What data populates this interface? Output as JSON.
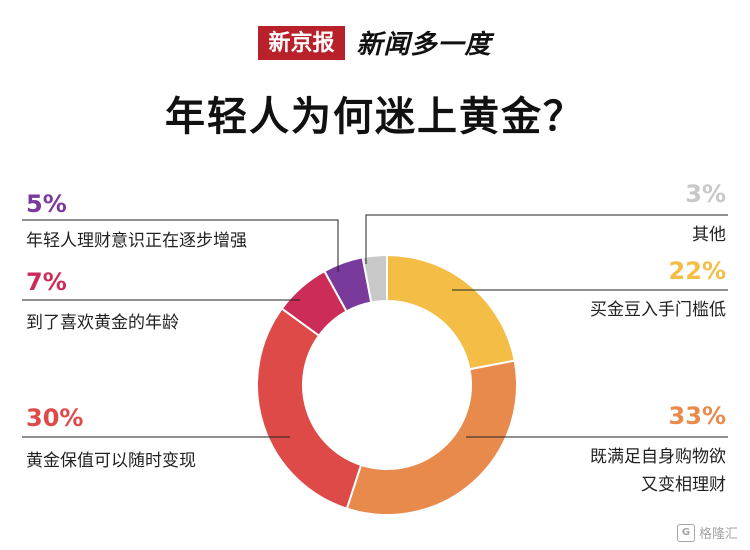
{
  "header": {
    "brand": "新京报",
    "sub": "新闻多一度",
    "title": "年轻人为何迷上黄金？"
  },
  "chart_data": {
    "type": "pie",
    "donut": true,
    "title": "年轻人为何迷上黄金？",
    "slices": [
      {
        "label": "买金豆入手门槛低",
        "pct_text": "22%",
        "value": 22,
        "color": "#f4bd46"
      },
      {
        "label": "既满足自身购物欲 又变相理财",
        "pct_text": "33%",
        "value": 33,
        "color": "#e98a4d"
      },
      {
        "label": "黄金保值可以随时变现",
        "pct_text": "30%",
        "value": 30,
        "color": "#de4a48"
      },
      {
        "label": "到了喜欢黄金的年龄",
        "pct_text": "7%",
        "value": 7,
        "color": "#cc2c58"
      },
      {
        "label": "年轻人理财意识正在逐步增强",
        "pct_text": "5%",
        "value": 5,
        "color": "#7a3a9c"
      },
      {
        "label": "其他",
        "pct_text": "3%",
        "value": 3,
        "color": "#c8c8c8"
      }
    ],
    "legend": "inline-callouts"
  },
  "callouts": {
    "youth": {
      "pct": "5%",
      "line1": "年轻人理财意识正在逐步增强",
      "color": "#7a3a9c"
    },
    "age": {
      "pct": "7%",
      "line1": "到了喜欢黄金的年龄",
      "color": "#cc2c58"
    },
    "value": {
      "pct": "30%",
      "line1": "黄金保值可以随时变现",
      "color": "#de4a48"
    },
    "other": {
      "pct": "3%",
      "line1": "其他",
      "color": "#c8c8c8"
    },
    "beans": {
      "pct": "22%",
      "line1": "买金豆入手门槛低",
      "color": "#f4bd46"
    },
    "shop": {
      "pct": "33%",
      "line1": "既满足自身购物欲",
      "line2": "又变相理财",
      "color": "#e98a4d"
    }
  },
  "watermark": {
    "icon": "G",
    "text": "格隆汇"
  }
}
